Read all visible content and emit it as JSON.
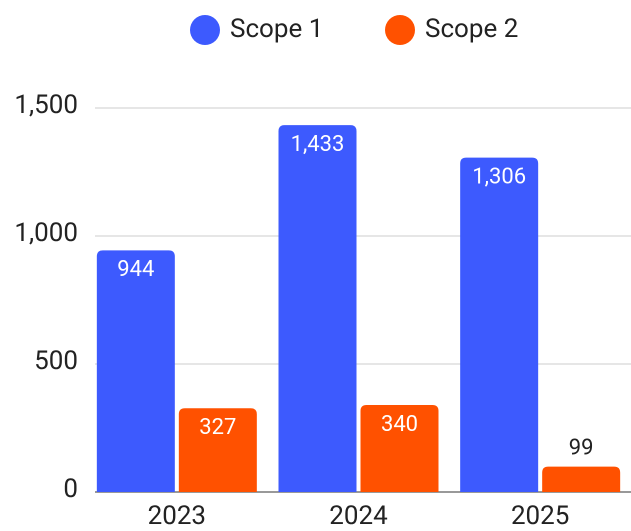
{
  "chart_data": {
    "type": "bar",
    "categories": [
      "2023",
      "2024",
      "2025"
    ],
    "series": [
      {
        "name": "Scope 1",
        "color": "#3d5afe",
        "values": [
          944,
          1433,
          1306
        ],
        "value_labels": [
          "944",
          "1,433",
          "1,306"
        ]
      },
      {
        "name": "Scope 2",
        "color": "#ff5100",
        "values": [
          327,
          340,
          99
        ],
        "value_labels": [
          "327",
          "340",
          "99"
        ]
      }
    ],
    "ylim": [
      0,
      1500
    ],
    "yticks": [
      0,
      500,
      {
        "value": 1000,
        "label": "1,000"
      },
      {
        "value": 1500,
        "label": "1,500"
      }
    ],
    "grid": true,
    "legend": "top"
  }
}
